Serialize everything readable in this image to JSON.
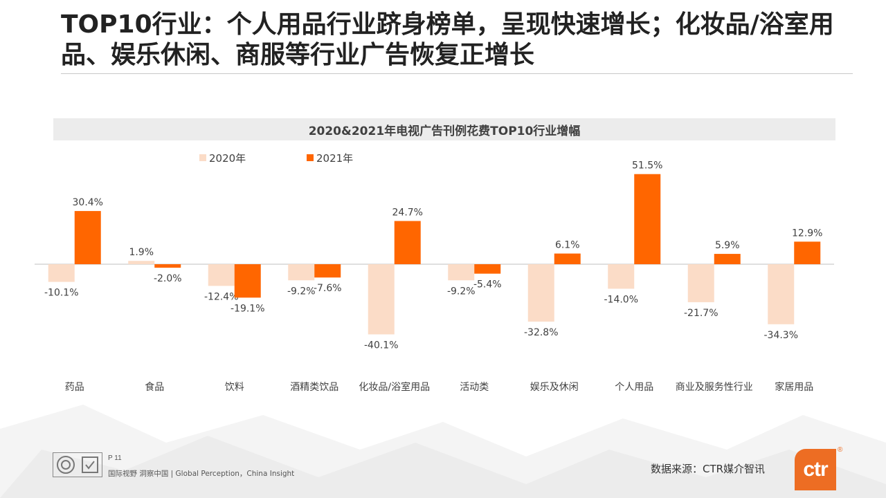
{
  "page": {
    "title": "TOP10行业：个人用品行业跻身榜单，呈现快速增长；化妆品/浴室用品、娱乐休闲、商服等行业广告恢复正增长",
    "page_number": "P 11",
    "tagline": "国际视野  洞察中国 |  Global Perception，China Insight",
    "source": "数据来源：CTR媒介智讯",
    "logo_text": "ctr",
    "logo_mark": "®"
  },
  "colors": {
    "series_2020": "#fbdcc7",
    "series_2021": "#ff6600",
    "axis": "#bfbfbf"
  },
  "chart_data": {
    "type": "bar",
    "title": "2020&2021年电视广告刊例花费TOP10行业增幅",
    "categories": [
      "药品",
      "食品",
      "饮料",
      "酒精类饮品",
      "化妆品/浴室用品",
      "活动类",
      "娱乐及休闲",
      "个人用品",
      "商业及服务性行业",
      "家居用品"
    ],
    "series": [
      {
        "name": "2020年",
        "values": [
          -10.1,
          1.9,
          -12.4,
          -9.2,
          -40.1,
          -9.2,
          -32.8,
          -14.0,
          -21.7,
          -34.3
        ]
      },
      {
        "name": "2021年",
        "values": [
          30.4,
          -2.0,
          -19.1,
          -7.6,
          24.7,
          -5.4,
          6.1,
          51.5,
          5.9,
          12.9
        ]
      }
    ],
    "value_suffix": "%",
    "legend_position": "top-left",
    "grid": false
  }
}
